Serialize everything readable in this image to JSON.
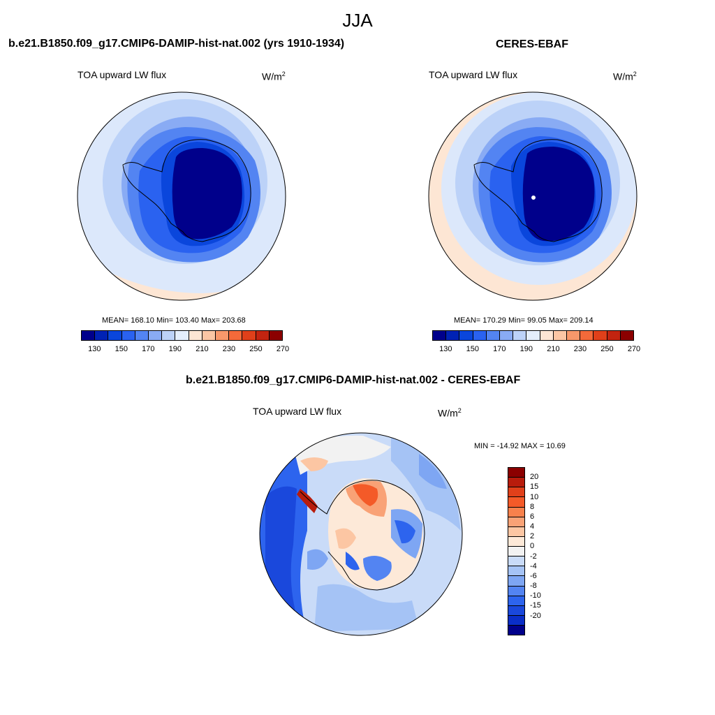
{
  "figure": {
    "title": "JJA"
  },
  "panels": [
    {
      "title": "b.e21.B1850.f09_g17.CMIP6-DAMIP-hist-nat.002 (yrs 1910-1934)",
      "variable": "TOA upward LW flux",
      "units_base": "W/m",
      "units_exp": "2",
      "stats": "MEAN= 168.10  Min= 103.40  Max= 203.68"
    },
    {
      "title": "CERES-EBAF",
      "variable": "TOA upward LW flux",
      "units_base": "W/m",
      "units_exp": "2",
      "stats": "MEAN= 170.29  Min=  99.05  Max= 209.14"
    },
    {
      "title": "b.e21.B1850.f09_g17.CMIP6-DAMIP-hist-nat.002 - CERES-EBAF",
      "variable": "TOA upward LW flux",
      "units_base": "W/m",
      "units_exp": "2",
      "stats": "MIN = -14.92 MAX =  10.69"
    }
  ],
  "colorbar_abs": {
    "colors": [
      "#00008b",
      "#0022b4",
      "#0a46dc",
      "#2a62f0",
      "#5384f2",
      "#89abf4",
      "#bcd2f8",
      "#e4eefc",
      "#fde6d4",
      "#fbc6a4",
      "#f8986b",
      "#f46a3a",
      "#e0401a",
      "#c32410",
      "#8b0000"
    ],
    "tick_labels": [
      "130",
      "150",
      "170",
      "190",
      "210",
      "230",
      "250",
      "270"
    ]
  },
  "colorbar_diff": {
    "colors": [
      "#8b0000",
      "#b81c0c",
      "#e0401a",
      "#f45a28",
      "#f8814c",
      "#f9a276",
      "#fcc6a3",
      "#fde9d8",
      "#f2f2f2",
      "#c9dbf8",
      "#a5c3f5",
      "#7ea6f3",
      "#5384f2",
      "#2d64ee",
      "#1a48dc",
      "#0a2ec8",
      "#00008b"
    ],
    "tick_labels": [
      "20",
      "15",
      "10",
      "8",
      "6",
      "4",
      "2",
      "0",
      "-2",
      "-4",
      "-6",
      "-8",
      "-10",
      "-15",
      "-20"
    ]
  }
}
